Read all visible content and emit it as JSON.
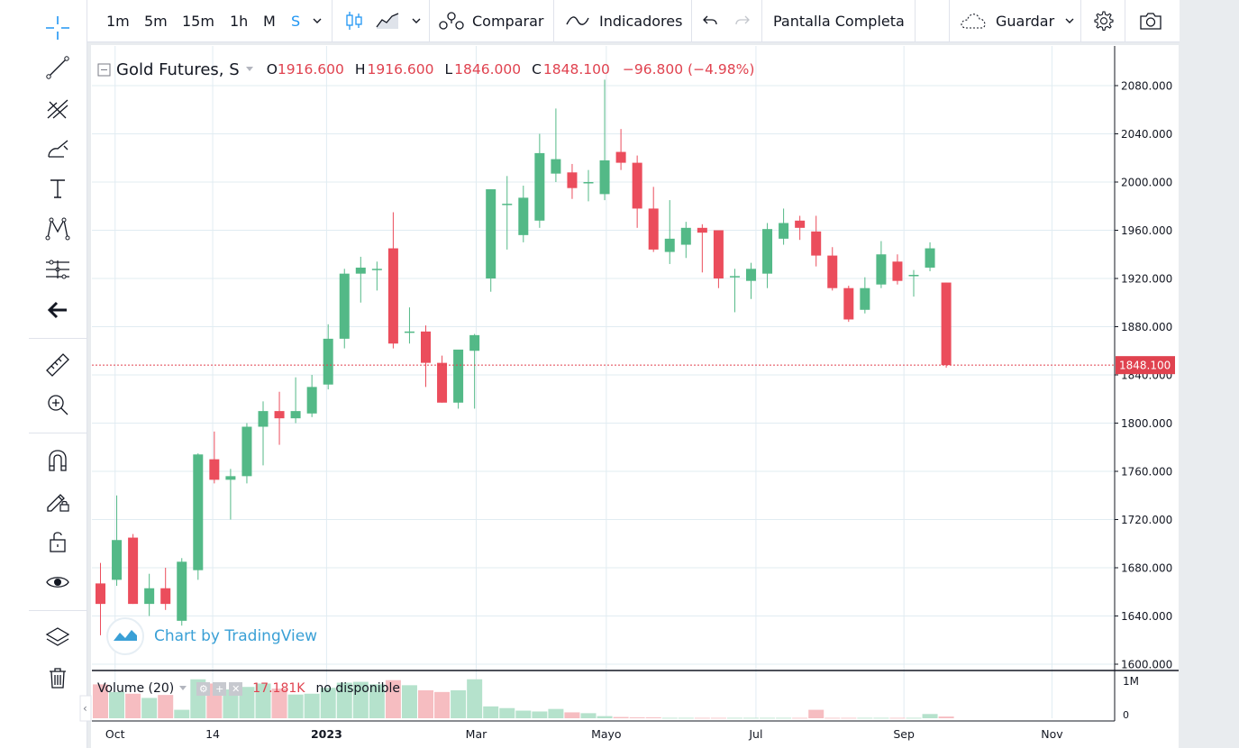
{
  "toolbar": {
    "intervals": [
      "1m",
      "5m",
      "15m",
      "1h",
      "M",
      "S"
    ],
    "active_interval": "S",
    "compare_label": "Comparar",
    "indicators_label": "Indicadores",
    "fullscreen_label": "Pantalla Completa",
    "save_label": "Guardar"
  },
  "legend": {
    "symbol": "Gold Futures, S",
    "o_label": "O",
    "o_value": "1916.600",
    "h_label": "H",
    "h_value": "1916.600",
    "l_label": "L",
    "l_value": "1846.000",
    "c_label": "C",
    "c_value": "1848.100",
    "change": "−96.800 (−4.98%)"
  },
  "volume_legend": {
    "label": "Volume (20)",
    "value": "17.181K",
    "status": "no disponible"
  },
  "watermark": "Chart by TradingView",
  "colors": {
    "up": "#53b987",
    "down": "#eb4d5c",
    "up_vol": "#b5e2cc",
    "down_vol": "#f6bdc1",
    "grid": "#e1ecf2",
    "last_price": "#e0424f"
  },
  "chart_data": {
    "type": "candlestick",
    "title": "Gold Futures, S",
    "last_price_label": "1848.100",
    "y_ticks": [
      "2080.000",
      "2040.000",
      "2000.000",
      "1960.000",
      "1920.000",
      "1880.000",
      "1840.000",
      "1800.000",
      "1760.000",
      "1720.000",
      "1680.000",
      "1640.000",
      "1600.000"
    ],
    "ylim": [
      1590,
      2105
    ],
    "x_tick_labels": [
      {
        "label": "Oct",
        "index": 0.9
      },
      {
        "label": "14",
        "index": 6.9
      },
      {
        "label": "2023",
        "index": 13.9
      },
      {
        "label": "Mar",
        "index": 23.1
      },
      {
        "label": "Mayo",
        "index": 31.1
      },
      {
        "label": "Jul",
        "index": 40.3
      },
      {
        "label": "Sep",
        "index": 49.4
      },
      {
        "label": "Nov",
        "index": 58.5
      }
    ],
    "volume_ticks": [
      "1M",
      "0"
    ],
    "candles": [
      [
        1667,
        1684,
        1624,
        1650
      ],
      [
        1670,
        1740,
        1665,
        1703
      ],
      [
        1705,
        1708,
        1650,
        1650
      ],
      [
        1650,
        1675,
        1640,
        1663
      ],
      [
        1663,
        1680,
        1645,
        1650
      ],
      [
        1636,
        1688,
        1632,
        1685
      ],
      [
        1678,
        1775,
        1670,
        1774
      ],
      [
        1770,
        1793,
        1750,
        1753
      ],
      [
        1753,
        1762,
        1720,
        1756
      ],
      [
        1756,
        1800,
        1750,
        1797
      ],
      [
        1797,
        1818,
        1765,
        1810
      ],
      [
        1810,
        1826,
        1782,
        1804
      ],
      [
        1804,
        1838,
        1800,
        1810
      ],
      [
        1808,
        1840,
        1805,
        1830
      ],
      [
        1832,
        1882,
        1828,
        1870
      ],
      [
        1870,
        1928,
        1862,
        1924
      ],
      [
        1924,
        1938,
        1900,
        1929
      ],
      [
        1928,
        1934,
        1910,
        1928
      ],
      [
        1945,
        1975,
        1862,
        1866
      ],
      [
        1876,
        1896,
        1866,
        1876
      ],
      [
        1876,
        1881,
        1830,
        1850
      ],
      [
        1850,
        1856,
        1817,
        1817
      ],
      [
        1817,
        1860,
        1812,
        1861
      ],
      [
        1860,
        1874,
        1812,
        1873
      ],
      [
        1920,
        1994,
        1909,
        1994
      ],
      [
        1981,
        2005,
        1944,
        1982
      ],
      [
        1956,
        1997,
        1950,
        1987
      ],
      [
        1968,
        2040,
        1962,
        2024
      ],
      [
        2007,
        2061,
        2000,
        2019
      ],
      [
        2008,
        2015,
        1986,
        1995
      ],
      [
        2000,
        2010,
        1984,
        2000
      ],
      [
        1990,
        2085,
        1985,
        2018
      ],
      [
        2025,
        2044,
        2010,
        2016
      ],
      [
        2016,
        2022,
        1962,
        1978
      ],
      [
        1978,
        1996,
        1942,
        1944
      ],
      [
        1942,
        1985,
        1932,
        1953
      ],
      [
        1948,
        1967,
        1937,
        1962
      ],
      [
        1962,
        1965,
        1925,
        1958
      ],
      [
        1960,
        1960,
        1912,
        1920
      ],
      [
        1921,
        1928,
        1892,
        1922
      ],
      [
        1918,
        1933,
        1903,
        1928
      ],
      [
        1924,
        1966,
        1912,
        1961
      ],
      [
        1953,
        1978,
        1948,
        1966
      ],
      [
        1968,
        1972,
        1952,
        1962
      ],
      [
        1959,
        1972,
        1930,
        1939
      ],
      [
        1939,
        1946,
        1910,
        1912
      ],
      [
        1912,
        1914,
        1884,
        1886
      ],
      [
        1894,
        1921,
        1891,
        1912
      ],
      [
        1915,
        1951,
        1912,
        1940
      ],
      [
        1934,
        1940,
        1915,
        1918
      ],
      [
        1922,
        1927,
        1905,
        1923
      ],
      [
        1929,
        1950,
        1926,
        1945
      ],
      [
        1916.6,
        1916.6,
        1846,
        1848.1
      ]
    ],
    "volume": [
      0.8,
      0.62,
      0.58,
      0.48,
      0.55,
      0.2,
      0.92,
      0.82,
      0.68,
      0.74,
      0.82,
      0.7,
      0.56,
      0.58,
      0.72,
      0.84,
      0.86,
      0.8,
      0.9,
      0.78,
      0.66,
      0.62,
      0.66,
      0.92,
      0.28,
      0.24,
      0.18,
      0.16,
      0.22,
      0.14,
      0.12,
      0.05,
      0.03,
      0.02,
      0.02,
      0.01,
      0.01,
      0.01,
      0.01,
      0.01,
      0.01,
      0.01,
      0.01,
      0.01,
      0.2,
      0.01,
      0.01,
      0.01,
      0.01,
      0.01,
      0.01,
      0.1,
      0.04
    ]
  }
}
